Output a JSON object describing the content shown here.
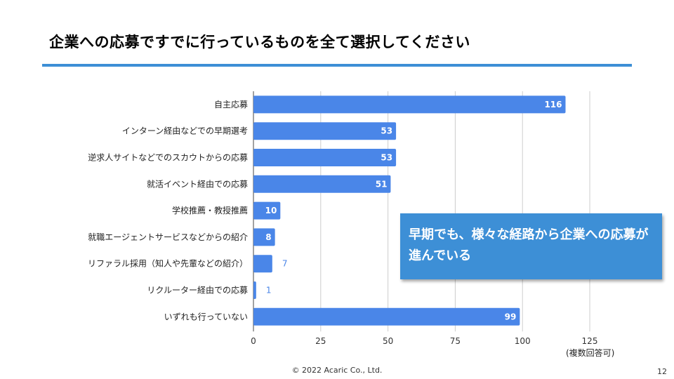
{
  "slide": {
    "title": "企業への応募ですでに行っているものを全て選択してください",
    "callout": "早期でも、様々な経路から企業への応募が進んでいる",
    "note": "(複数回答可)",
    "footer": "© 2022 Acaric Co., Ltd.",
    "page_number": "12",
    "accent_color": "#3d8fd6"
  },
  "chart_data": {
    "type": "bar",
    "orientation": "horizontal",
    "categories": [
      "自主応募",
      "インターン経由などでの早期選考",
      "逆求人サイトなどでのスカウトからの応募",
      "就活イベント経由での応募",
      "学校推薦・教授推薦",
      "就職エージェントサービスなどからの紹介",
      "リファラル採用（知人や先輩などの紹介）",
      "リクルーター経由での応募",
      "いずれも行っていない"
    ],
    "values": [
      116,
      53,
      53,
      51,
      10,
      8,
      7,
      1,
      99
    ],
    "xlim": [
      0,
      125
    ],
    "xticks": [
      0,
      25,
      50,
      75,
      100,
      125
    ],
    "grid": true,
    "bar_color": "#4a86e8",
    "title": "",
    "xlabel": "",
    "ylabel": ""
  }
}
